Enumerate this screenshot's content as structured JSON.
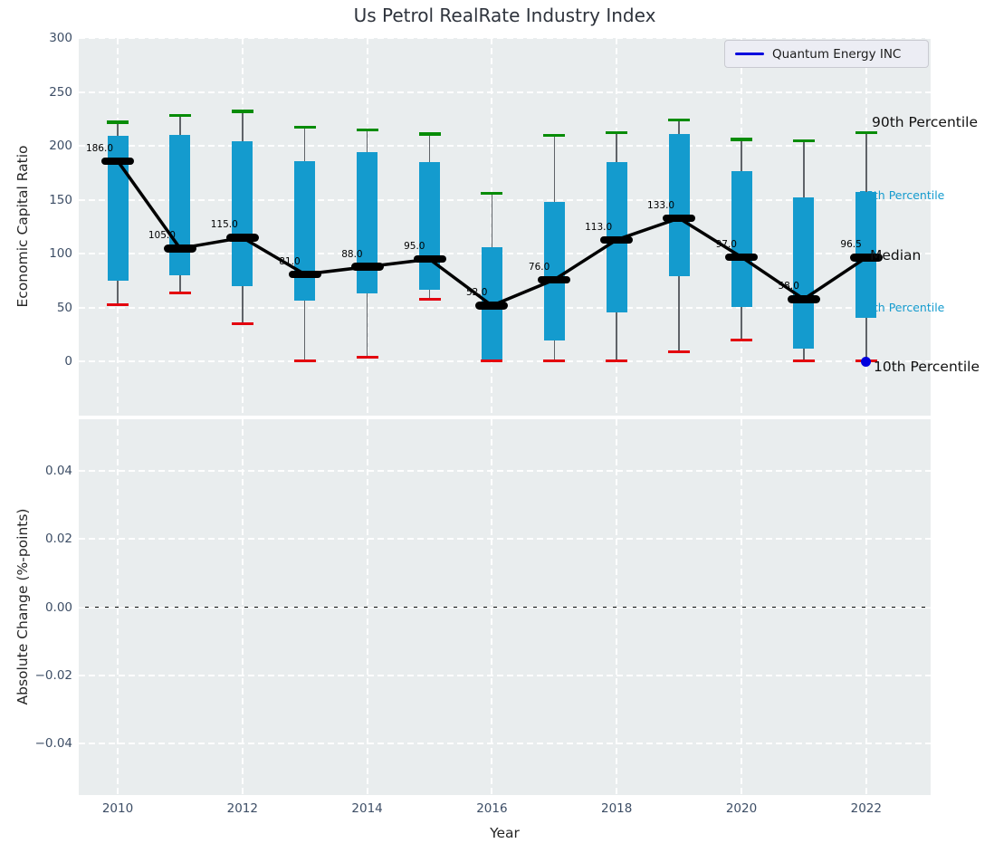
{
  "figure": {
    "title": "Us Petrol RealRate Industry Index"
  },
  "legend": {
    "label": "Quantum Energy INC"
  },
  "annotations": {
    "p90": "90th Percentile",
    "p75": "75th Percentile",
    "median": "Median",
    "p25": "25th Percentile",
    "p10": "10th Percentile"
  },
  "colors": {
    "bar": "#149bce",
    "whisker": "#5f6368",
    "p90_cap": "#078c07",
    "p10_cap": "#e3000e",
    "median": "#000000",
    "company": "#0000dd",
    "axes_bg": "#e9edee",
    "grid": "#ffffff",
    "tick_text": "#3d4e66",
    "cyan_text": "#149bce"
  },
  "chart_data": {
    "type": "box",
    "title": "Us Petrol RealRate Industry Index",
    "legend_position": "upper right",
    "grid": true,
    "top_panel": {
      "ylabel": "Economic Capital Ratio",
      "ylim": [
        -50,
        300
      ],
      "yticks": [
        {
          "label": "300",
          "value": 300
        },
        {
          "label": "250",
          "value": 250
        },
        {
          "label": "200",
          "value": 200
        },
        {
          "label": "150",
          "value": 150
        },
        {
          "label": "100",
          "value": 100
        },
        {
          "label": "50",
          "value": 50
        },
        {
          "label": "0",
          "value": 0
        }
      ],
      "years": [
        2010,
        2011,
        2012,
        2013,
        2014,
        2015,
        2016,
        2017,
        2018,
        2019,
        2020,
        2021,
        2022
      ],
      "p90": [
        222,
        228,
        232,
        217,
        215,
        211,
        156,
        210,
        212,
        224,
        206,
        205,
        212
      ],
      "p75": [
        209,
        210,
        204,
        186,
        194,
        185,
        106,
        148,
        185,
        211,
        177,
        152,
        157
      ],
      "median": [
        186,
        105,
        115,
        81,
        88,
        95,
        52,
        76,
        113,
        133,
        97,
        58,
        96.5
      ],
      "p25": [
        75,
        80,
        70,
        57,
        63,
        67,
        0.5,
        20,
        46,
        79,
        51,
        12,
        41
      ],
      "p10": [
        53,
        64,
        35,
        1,
        4,
        58,
        1,
        1,
        1,
        9,
        20,
        1,
        1
      ],
      "median_labels": [
        "186.0",
        "105.0",
        "115.0",
        "81.0",
        "88.0",
        "95.0",
        "52.0",
        "76.0",
        "113.0",
        "133.0",
        "97.0",
        "58.0",
        "96.5"
      ],
      "company_series": {
        "name": "Quantum Energy INC",
        "points": [
          {
            "year": 2022,
            "value": 0
          }
        ]
      }
    },
    "bottom_panel": {
      "ylabel": "Absolute Change (%-points)",
      "xlabel": "Year",
      "ylim": [
        -0.055,
        0.055
      ],
      "yticks": [
        {
          "label": "0.04",
          "value": 0.04
        },
        {
          "label": "0.02",
          "value": 0.02
        },
        {
          "label": "0.00",
          "value": 0
        },
        {
          "label": "−0.02",
          "value": -0.02
        },
        {
          "label": "−0.04",
          "value": -0.04
        }
      ],
      "xticks": [
        {
          "label": "2010",
          "value": 2010
        },
        {
          "label": "2012",
          "value": 2012
        },
        {
          "label": "2014",
          "value": 2014
        },
        {
          "label": "2016",
          "value": 2016
        },
        {
          "label": "2018",
          "value": 2018
        },
        {
          "label": "2020",
          "value": 2020
        },
        {
          "label": "2022",
          "value": 2022
        }
      ],
      "zero_line": 0,
      "series": []
    }
  }
}
